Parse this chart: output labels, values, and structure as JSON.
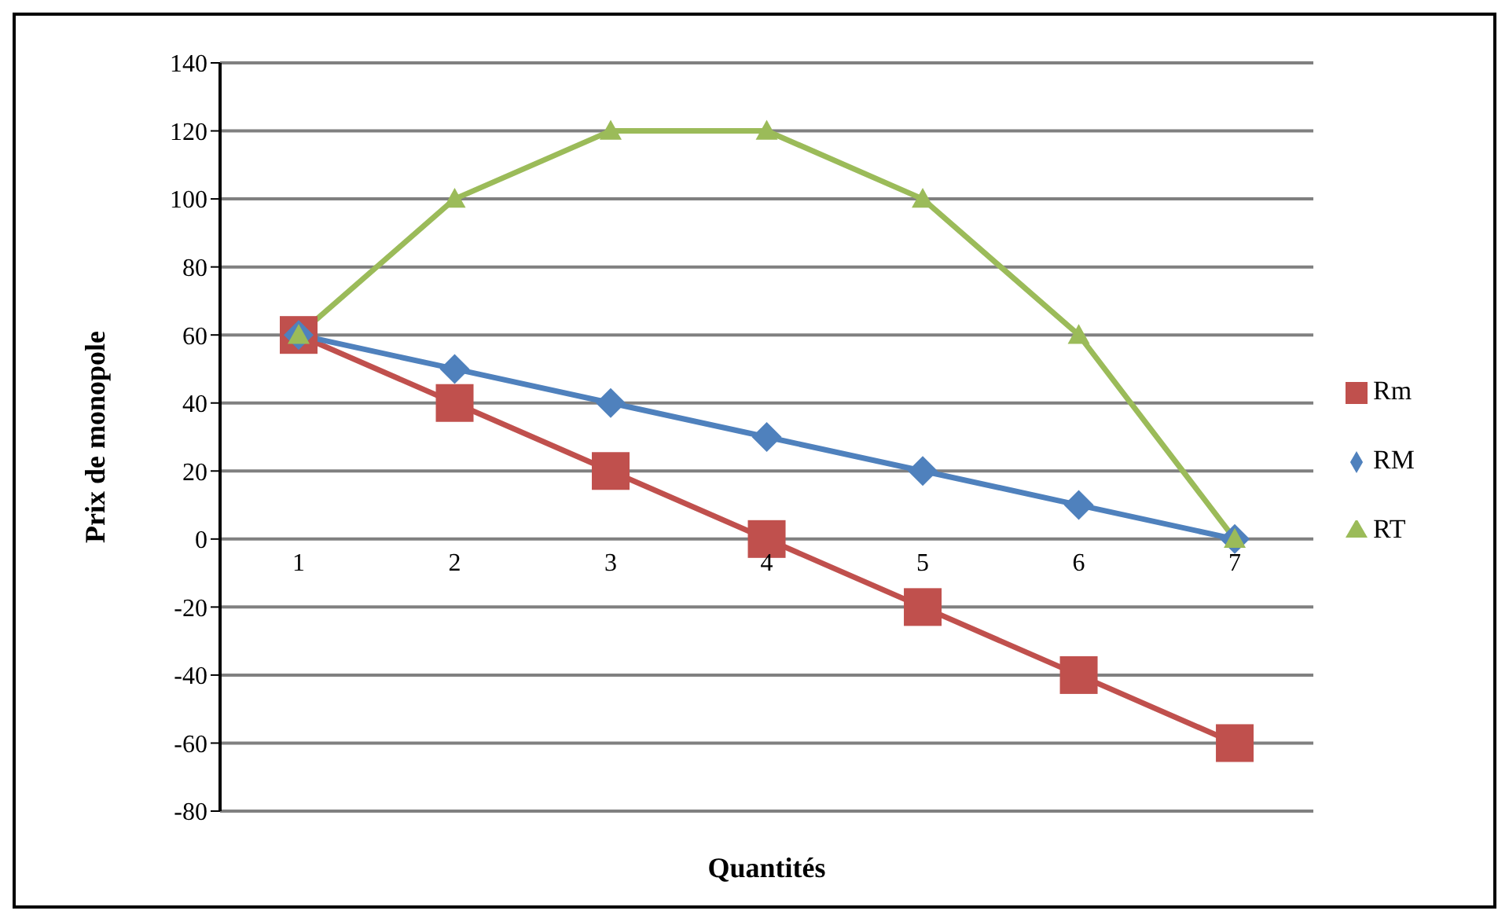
{
  "chart_data": {
    "type": "line",
    "xlabel": "Quantités",
    "ylabel": "Prix de monopole",
    "categories": [
      "1",
      "2",
      "3",
      "4",
      "5",
      "6",
      "7"
    ],
    "series": [
      {
        "name": "Rm",
        "color": "#c0504d",
        "marker": "square",
        "values": [
          60,
          40,
          20,
          0,
          -20,
          -40,
          -60
        ]
      },
      {
        "name": "RM",
        "color": "#4f81bd",
        "marker": "diamond",
        "values": [
          60,
          50,
          40,
          30,
          20,
          10,
          0
        ]
      },
      {
        "name": "RT",
        "color": "#9bbb59",
        "marker": "triangle",
        "values": [
          60,
          100,
          120,
          120,
          100,
          60,
          0
        ]
      }
    ],
    "ylim": [
      -80,
      140
    ],
    "yticks": [
      -80,
      -60,
      -40,
      -20,
      0,
      20,
      40,
      60,
      80,
      100,
      120,
      140
    ],
    "grid": "y",
    "legend": "right"
  }
}
